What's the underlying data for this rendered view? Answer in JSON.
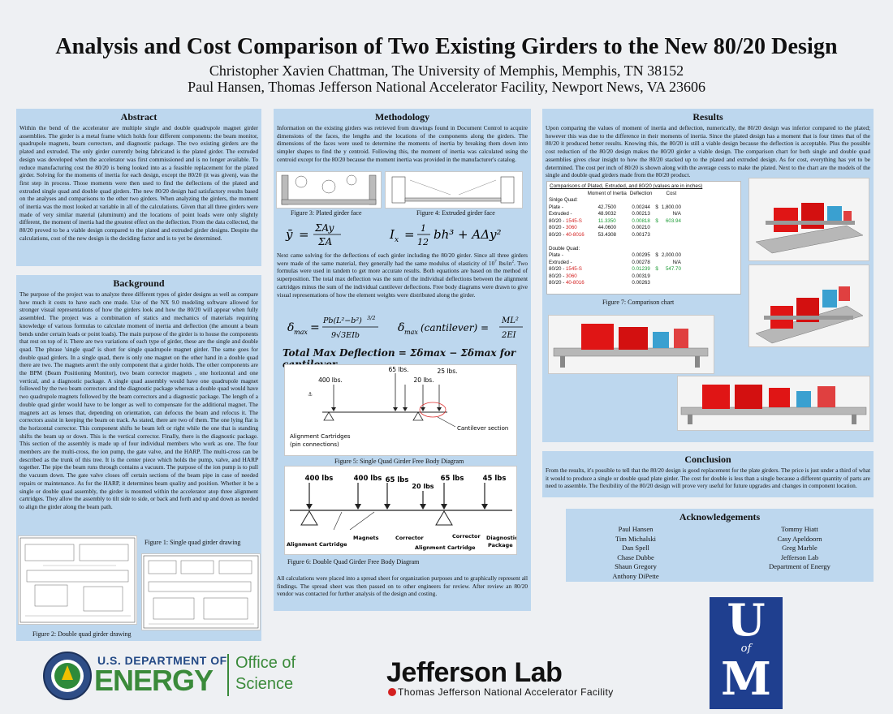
{
  "title": "Analysis and Cost Comparison of Two Existing Girders to the New 80/20 Design",
  "authors": [
    "Christopher Xavien Chattman, The University of Memphis, Memphis, TN 38152",
    "Paul Hansen, Thomas Jefferson National Accelerator Facility, Newport News, VA 23606"
  ],
  "abstract": {
    "heading": "Abstract",
    "text": "Within the bend of the accelerator are multiple single and double quadrupole magnet girder assemblies. The girder is a metal frame which holds four different components: the beam monitor, quadrupole magnets, beam correctors, and diagnostic package. The two existing girders are the plated and extruded. The only girder currently being fabricated is the plated girder. The extruded design was developed when the accelerator was first commissioned and is no longer available. To reduce manufacturing cost the 80/20 is being looked into as a feasible replacement for the plated girder. Solving for the moments of inertia for each design, except the 80/20 (it was given), was the first step in process. Those moments were then used to find the deflections of the plated and extruded single quad and double quad girders. The new 80/20 design had satisfactory results based on the analyses and comparisons to the other two girders. When analyzing the girders, the moment of inertia was the most looked at variable in all of the calculations. Given that all three girders were made of very similar material (aluminum) and the locations of point loads were only slightly different, the moment of inertia had the greatest effect on the deflection. From the data collected, the 80/20 proved to be a viable design compared to the plated and extruded girder designs. Despite the calculations, cost of the new design is the deciding factor and is to yet be determined."
  },
  "background": {
    "heading": "Background",
    "text": "The purpose of the project was to analyze three different types of girder designs as well as compare how much it costs to have each one made. Use of the NX 9.0 modeling software allowed for stronger visual representations of how the girders look and how the 80/20 will appear when fully assembled. The project was a combination of statics and mechanics of materials requiring knowledge of various formulas to calculate moment of inertia and deflection (the amount a beam bends under certain loads or point loads). The main purpose of the girder is to house the components that rest on top of it. There are two variations of each type of girder, these are the single and double quad. The phrase 'single quad' is short for single quadrupole magnet girder. The same goes for double quad girders. In a single quad, there is only one magnet on the other hand in a double quad there are two. The magnets aren't the only component that a girder holds. The other components are the BPM (Beam Positioning Monitor), two beam corrector magnets , one horizontal and one vertical, and a diagnostic package. A single quad assembly would have one quadrupole magnet followed by the two beam correctors and the diagnostic package whereas a double quad would have two quadrupole magnets followed by the beam correctors and a diagnostic package. The length of a double quad girder would have to be longer as well to compensate for the additional magnet. The magnets act as lenses that, depending on orientation, can defocus the beam and refocus it. The correctors assist in keeping the beam on track. As stated, there are two of them. The one lying flat is the horizontal corrector. This component shifts he beam left or right while the one that is standing shifts the beam up or down. This is the vertical corrector. Finally, there is the diagnostic package. This section of the assembly is made up of four individual members who work as one. The four members are the multi-cross, the ion pump, the gate valve, and the HARP. The multi-cross can be described as the trunk of this tree. It is the center piece which holds the pump, valve, and HARP together. The pipe the beam runs through contains a vacuum. The purpose of the ion pump is to pull the vacuum down. The gate valve closes off certain sections of the beam pipe in case of needed repairs or maintenance. As for the HARP, it determines beam quality and position. Whether it be a single or double quad assembly, the girder is mounted within the accelerator atop three alignment cartridges. They allow the assembly to tilt side to side, or back and forth and up and down as needed to align the girder along the beam path.",
    "fig1_caption": "Figure 1: Single quad girder drawing",
    "fig2_caption": "Figure 2: Double quad girder drawing"
  },
  "methodology": {
    "heading": "Methodology",
    "text1": "Information on the existing girders was retrieved from drawings found in Document Control to acquire dimensions of the faces, the lengths and the locations of the components along the girders. The dimensions of the faces were used to determine the moments of inertia by breaking them down into simpler shapes to find the y centroid. Following this, the moment of inertia was calculated using the centroid except for the 80/20 because the moment inertia was provided in the manufacturer's catalog.",
    "fig3_caption": "Figure 3: Plated girder face",
    "fig4_caption": "Figure 4: Extruded girder face",
    "eq_centroid": "ȳ = ΣAy / ΣA",
    "eq_inertia": "Iₓ = (1/12) bh³ + AΔy²",
    "text2a": "Next came solving for the deflections of each girder including the 80/20 girder. Since all three girders were made of the same material, they generally had the same modulus of elasticity of 10",
    "text2_sup1": "7",
    "text2b": " lbs/in",
    "text2_sup2": "2",
    "text2c": ". Two formulas were used in tandem to get more accurate results. Both equations are based on the method of superposition. The total max deflection was the sum of the individual deflections between the alignment cartridges minus the sum of the individual cantilever deflections. Free body diagrams were drawn to give visual representations of how the element weights were distributed along the girder.",
    "eq_delta_max": "δmax = Pb(L² − b²)^(3/2) / 9√3 EIb",
    "eq_cantilever": "δmax (cantilever) = ML² / 2EI",
    "eq_total": "Total Max Deflection = Σδmax − Σδmax for cantilever",
    "fig5": {
      "loads": [
        "400 lbs.",
        "65 lbs.",
        "20 lbs.",
        "25 lbs."
      ],
      "support_label_1": "Alignment Cartridges",
      "support_label_2": "(pin connections)",
      "cantilever_label": "Cantilever section",
      "caption": "Figure 5: Single Quad Girder Free Body Diagram"
    },
    "fig6": {
      "loads": [
        "400 lbs",
        "400 lbs",
        "65 lbs",
        "20 lbs",
        "65 lbs",
        "45 lbs"
      ],
      "labels": [
        "Alignment Cartridge",
        "Magnets",
        "Corrector",
        "Alignment Cartridge",
        "Corrector",
        "Diagnostic",
        "Package"
      ],
      "caption": "Figure 6: Double Quad Girder Free Body Diagram"
    },
    "text3": "All calculations were placed into a spread sheet for organization purposes and to graphically represent all findings. The spread sheet was then passed on to other engineers for review. After review an 80/20 vendor was contacted for further analysis of the design and costing."
  },
  "results": {
    "heading": "Results",
    "text": "Upon comparing the values of moment of inertia and deflection, numerically, the 80/20 design was inferior compared to the plated; however this was due to the difference in their moments of inertia. Since the plated design has a moment that is four times that of the 80/20 it produced better results. Knowing this, the 80/20 is still a viable design because the deflection is acceptable. Plus the possible cost reduction of the 80/20 design makes the 80/20 girder a viable design. The comparison chart for both single and double quad assemblies gives clear insight to how the 80/20 stacked up to the plated and extruded design. As for cost, everything has yet to be determined. The cost per inch of 80/20 is shown along with the average costs to make the plated. Next to the chart are the models of the single and double quad girders made from the 80/20 product.",
    "table": {
      "title": "Comparisons of Plated, Extruded, and 80/20 (values are in inches)",
      "headers": [
        "",
        "Moment of Inertia",
        "Deflection",
        "",
        "Cost"
      ],
      "single_label": "Sinlge Quad:",
      "double_label": "Double Quad:",
      "single_rows": [
        {
          "name": "Plate -",
          "suffix": "",
          "moment": "42.7500",
          "deflection": "0.00244",
          "dollar": "$",
          "cost": "1,800.00"
        },
        {
          "name": "Extruded -",
          "suffix": "",
          "moment": "48.9032",
          "deflection": "0.00213",
          "dollar": "",
          "cost": "N/A"
        },
        {
          "name": "80/20 - ",
          "suffix": "1545-S",
          "moment": "11.3350",
          "deflection": "0.00818",
          "dollar": "$",
          "cost": "603.94"
        },
        {
          "name": "80/20 - ",
          "suffix": "3060",
          "moment": "44.0600",
          "deflection": "0.00210",
          "dollar": "",
          "cost": ""
        },
        {
          "name": "80/20 - ",
          "suffix": "40-8016",
          "moment": "53.4308",
          "deflection": "0.00173",
          "dollar": "",
          "cost": ""
        }
      ],
      "double_rows": [
        {
          "name": "Plate -",
          "suffix": "",
          "moment": "",
          "deflection": "0.00295",
          "dollar": "$",
          "cost": "2,000.00"
        },
        {
          "name": "Extruded -",
          "suffix": "",
          "moment": "",
          "deflection": "0.00278",
          "dollar": "",
          "cost": "N/A"
        },
        {
          "name": "80/20 - ",
          "suffix": "1545-S",
          "moment": "",
          "deflection": "0.01239",
          "dollar": "$",
          "cost": "547.70"
        },
        {
          "name": "80/20 - ",
          "suffix": "3060",
          "moment": "",
          "deflection": "0.00319",
          "dollar": "",
          "cost": ""
        },
        {
          "name": "80/20 - ",
          "suffix": "40-8016",
          "moment": "",
          "deflection": "0.00263",
          "dollar": "",
          "cost": ""
        }
      ]
    },
    "fig7_caption": "Figure 7: Comparison chart"
  },
  "conclusion": {
    "heading": "Conclusion",
    "text": "From the results, it's possible to tell that the 80/20 design is good replacement for the plate girders. The price is just under a third of what it would to produce a single or double quad plate girder. The cost for double is less than a single because a different quantity of parts are need to assemble. The flexibility of the 80/20 design will prove very useful for future upgrades and changes in component location."
  },
  "acknowledgements": {
    "heading": "Acknowledgements",
    "col1": [
      "Paul Hansen",
      "Tim Michalski",
      "Dan Spell",
      "Chase Dubbe",
      "Shaun Gregory",
      "Anthony DiPette"
    ],
    "col2": [
      "Tommy Hiatt",
      "Casy Apeldoorn",
      "Greg Marble",
      "Jefferson Lab",
      "Department of Energy"
    ]
  },
  "logos": {
    "doe_line1": "U.S. DEPARTMENT OF",
    "doe_line2": "ENERGY",
    "office_line1": "Office of",
    "office_line2": "Science",
    "jlab_name": "Jefferson Lab",
    "jlab_sub": "Thomas Jefferson National Accelerator Facility",
    "uofm_u": "U",
    "uofm_of": "of",
    "uofm_m": "M"
  },
  "colors": {
    "panel": "#bdd7ee",
    "machine_red": "#e01515",
    "doe_green": "#3a8a3a",
    "uofm_blue": "#1f3f8f"
  }
}
